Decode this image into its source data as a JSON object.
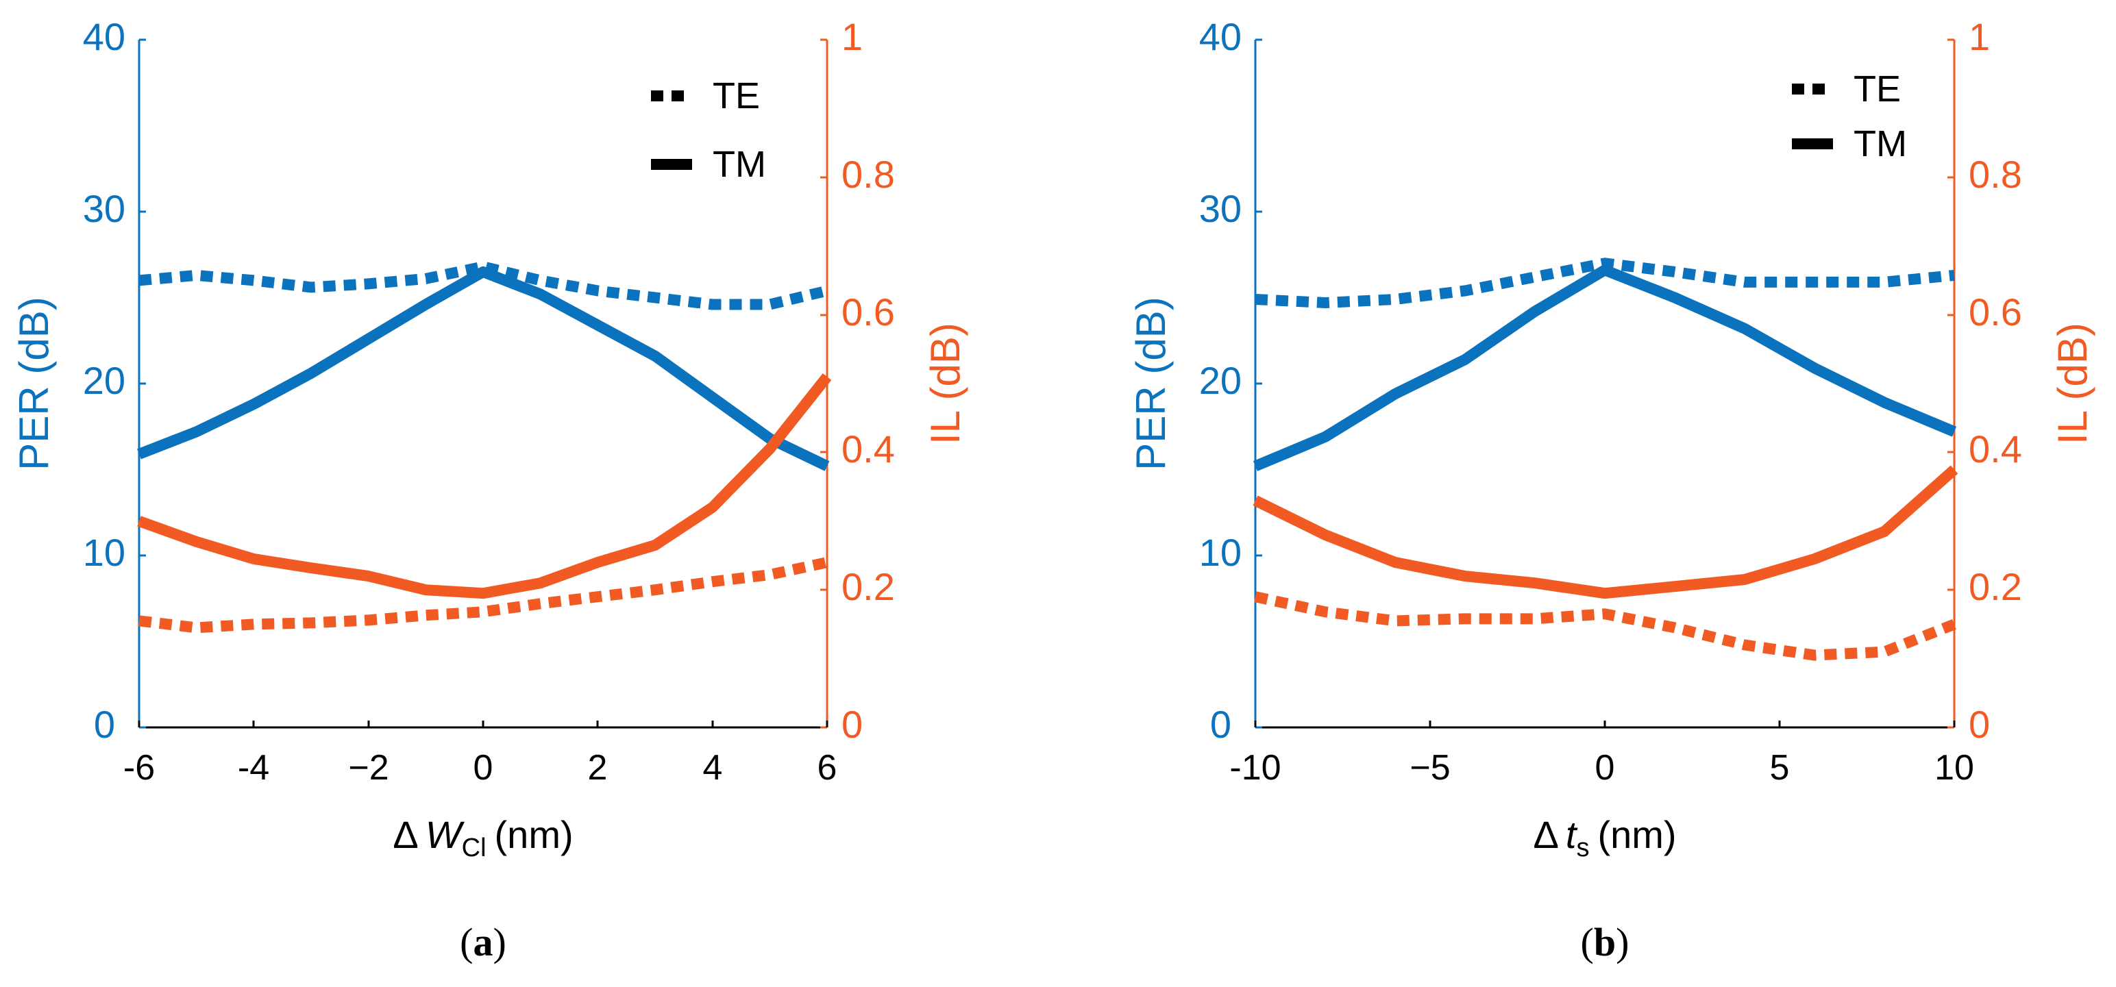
{
  "colors": {
    "per": "#0b72bd",
    "il": "#f15a22",
    "axis": "#000000"
  },
  "chart_data": [
    {
      "type": "line",
      "caption_open": "(",
      "caption_letter": "a",
      "caption_close": ")",
      "xlabel_prefix": "Δ",
      "xlabel_var": "W",
      "xlabel_sub": "Cl",
      "xlabel_unit": "(nm)",
      "xlim": [
        -6,
        6
      ],
      "xticks": [
        -6,
        -4,
        -2,
        0,
        2,
        4,
        6
      ],
      "xtick_labels": [
        "-6",
        "-4",
        "−2",
        "0",
        "2",
        "4",
        "6"
      ],
      "ylabel_left": "PER (dB)",
      "ylim_left": [
        0,
        40
      ],
      "yticks_left": [
        "0",
        "10",
        "20",
        "30",
        "40"
      ],
      "ylabel_right": "IL (dB)",
      "ylim_right": [
        0,
        1
      ],
      "yticks_right": [
        "0",
        "0.2",
        "0.4",
        "0.6",
        "0.8",
        "1"
      ],
      "legend": [
        "TE",
        "TM"
      ],
      "x": [
        -6,
        -5,
        -4,
        -3,
        -2,
        -1,
        0,
        1,
        2,
        3,
        4,
        5,
        6
      ],
      "series": [
        {
          "name": "PER TE",
          "axis": "left",
          "style": "dotted",
          "values": [
            26.0,
            26.3,
            26.0,
            25.6,
            25.8,
            26.1,
            26.8,
            26.0,
            25.4,
            25.0,
            24.6,
            24.6,
            25.4
          ]
        },
        {
          "name": "PER TM",
          "axis": "left",
          "style": "solid",
          "values": [
            15.9,
            17.2,
            18.8,
            20.6,
            22.6,
            24.6,
            26.5,
            25.2,
            23.4,
            21.6,
            19.2,
            16.8,
            15.2
          ]
        },
        {
          "name": "IL TE",
          "axis": "right",
          "style": "dotted",
          "values": [
            0.155,
            0.145,
            0.15,
            0.152,
            0.156,
            0.163,
            0.168,
            0.18,
            0.19,
            0.2,
            0.212,
            0.222,
            0.24
          ]
        },
        {
          "name": "IL TM",
          "axis": "right",
          "style": "solid",
          "values": [
            0.3,
            0.27,
            0.245,
            0.232,
            0.22,
            0.2,
            0.195,
            0.21,
            0.24,
            0.265,
            0.32,
            0.405,
            0.51
          ]
        }
      ]
    },
    {
      "type": "line",
      "caption_open": "(",
      "caption_letter": "b",
      "caption_close": ")",
      "xlabel_prefix": "Δ",
      "xlabel_var": "t",
      "xlabel_sub": "s",
      "xlabel_unit": "(nm)",
      "xlim": [
        -10,
        10
      ],
      "xticks": [
        -10,
        -5,
        0,
        5,
        10
      ],
      "xtick_labels": [
        "-10",
        "−5",
        "0",
        "5",
        "10"
      ],
      "ylabel_left": "PER (dB)",
      "ylim_left": [
        0,
        40
      ],
      "yticks_left": [
        "0",
        "10",
        "20",
        "30",
        "40"
      ],
      "ylabel_right": "IL (dB)",
      "ylim_right": [
        0,
        1
      ],
      "yticks_right": [
        "0",
        "0.2",
        "0.4",
        "0.6",
        "0.8",
        "1"
      ],
      "legend": [
        "TE",
        "TM"
      ],
      "x": [
        -10,
        -8,
        -6,
        -4,
        -2,
        0,
        2,
        4,
        6,
        8,
        10
      ],
      "series": [
        {
          "name": "PER TE",
          "axis": "left",
          "style": "dotted",
          "values": [
            24.9,
            24.7,
            24.9,
            25.4,
            26.2,
            27.0,
            26.5,
            25.9,
            25.9,
            25.9,
            26.3
          ]
        },
        {
          "name": "PER TM",
          "axis": "left",
          "style": "solid",
          "values": [
            15.2,
            16.9,
            19.4,
            21.4,
            24.2,
            26.6,
            25.0,
            23.2,
            20.9,
            18.9,
            17.2
          ]
        },
        {
          "name": "IL TE",
          "axis": "right",
          "style": "dotted",
          "values": [
            0.19,
            0.168,
            0.155,
            0.158,
            0.158,
            0.165,
            0.145,
            0.12,
            0.105,
            0.11,
            0.15
          ]
        },
        {
          "name": "IL TM",
          "axis": "right",
          "style": "solid",
          "values": [
            0.33,
            0.28,
            0.24,
            0.22,
            0.21,
            0.195,
            0.205,
            0.215,
            0.245,
            0.285,
            0.375
          ]
        }
      ]
    }
  ]
}
